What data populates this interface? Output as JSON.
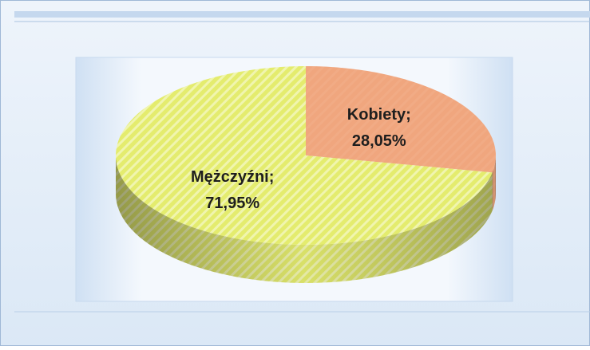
{
  "chart_data": {
    "type": "pie3d",
    "categories": [
      "Kobiety",
      "Mężczyźni"
    ],
    "label_separator": ";",
    "values": [
      28.05,
      71.95
    ],
    "value_labels": [
      "28,05%",
      "71,95%"
    ],
    "colors": [
      "#f0a67e",
      "#e4ec6e"
    ]
  }
}
